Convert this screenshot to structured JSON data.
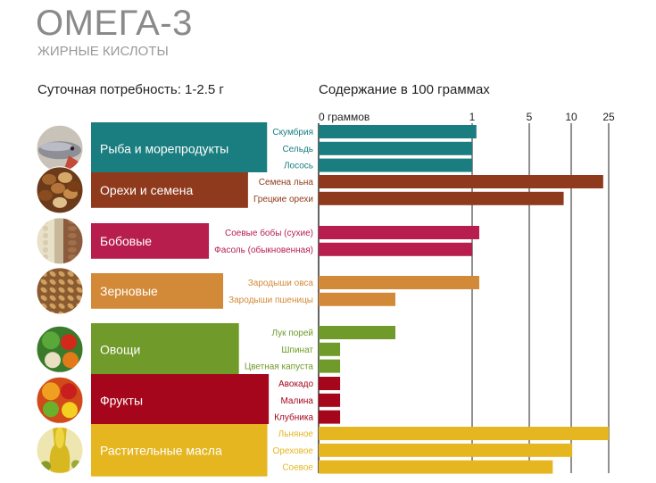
{
  "header": {
    "title": "ОМЕГА-3",
    "subtitle": "ЖИРНЫЕ КИСЛОТЫ",
    "daily_need": "Суточная потребность: 1-2.5 г",
    "content_label": "Содержание в 100 граммах"
  },
  "chart_data": {
    "type": "bar",
    "orientation": "horizontal",
    "scale": "piecewise",
    "xlabel": "Содержание в 100 граммах",
    "ticks": [
      {
        "value": 0,
        "label": "0 граммов"
      },
      {
        "value": 1,
        "label": "1"
      },
      {
        "value": 5,
        "label": "5"
      },
      {
        "value": 10,
        "label": "10"
      },
      {
        "value": 25,
        "label": "25"
      }
    ],
    "grid": true,
    "groups": [
      {
        "name": "Рыба и морепродукты",
        "color": "#1a7d7f",
        "icon": "fish-icon",
        "items": [
          {
            "label": "Скумбрия",
            "value": 1.3
          },
          {
            "label": "Сельдь",
            "value": 1.0
          },
          {
            "label": "Лосось",
            "value": 1.0
          }
        ]
      },
      {
        "name": "Орехи и семена",
        "color": "#8f3a1c",
        "icon": "nuts-icon",
        "items": [
          {
            "label": "Семена льна",
            "value": 22.8
          },
          {
            "label": "Грецкие орехи",
            "value": 9.1
          }
        ]
      },
      {
        "name": "Бобовые",
        "color": "#b71e4e",
        "icon": "beans-icon",
        "items": [
          {
            "label": "Соевые бобы (сухие)",
            "value": 1.5
          },
          {
            "label": "Фасоль (обыкновенная)",
            "value": 1.0
          }
        ]
      },
      {
        "name": "Зерновые",
        "color": "#d38a38",
        "icon": "grain-icon",
        "items": [
          {
            "label": "Зародыши овса",
            "value": 1.5
          },
          {
            "label": "Зародыши пшеницы",
            "value": 0.5
          }
        ]
      },
      {
        "name": "Овощи",
        "color": "#709a2a",
        "icon": "vegetables-icon",
        "items": [
          {
            "label": "Лук порей",
            "value": 0.5
          },
          {
            "label": "Шпинат",
            "value": 0.14
          },
          {
            "label": "Цветная капуста",
            "value": 0.14
          }
        ]
      },
      {
        "name": "Фрукты",
        "color": "#a5061b",
        "icon": "fruits-icon",
        "items": [
          {
            "label": "Авокадо",
            "value": 0.14
          },
          {
            "label": "Малина",
            "value": 0.14
          },
          {
            "label": "Клубника",
            "value": 0.14
          }
        ]
      },
      {
        "name": "Растительные масла",
        "color": "#e5b620",
        "icon": "oil-icon",
        "items": [
          {
            "label": "Льняное",
            "value": 25
          },
          {
            "label": "Ореховое",
            "value": 10.4
          },
          {
            "label": "Соевое",
            "value": 7.8
          }
        ]
      }
    ]
  }
}
